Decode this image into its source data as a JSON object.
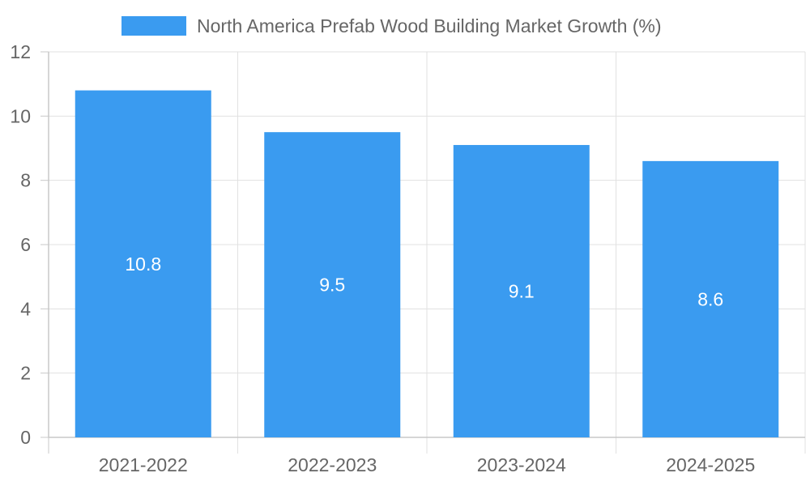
{
  "chart_data": {
    "type": "bar",
    "categories": [
      "2021-2022",
      "2022-2023",
      "2023-2024",
      "2024-2025"
    ],
    "series": [
      {
        "name": "North America Prefab Wood Building Market Growth (%)",
        "values": [
          10.8,
          9.5,
          9.1,
          8.6
        ],
        "color": "#3a9bf0"
      }
    ],
    "ylim": [
      0,
      12
    ],
    "yticks": [
      0,
      2,
      4,
      6,
      8,
      10,
      12
    ],
    "grid": true,
    "legend_position": "top",
    "data_labels": true
  }
}
